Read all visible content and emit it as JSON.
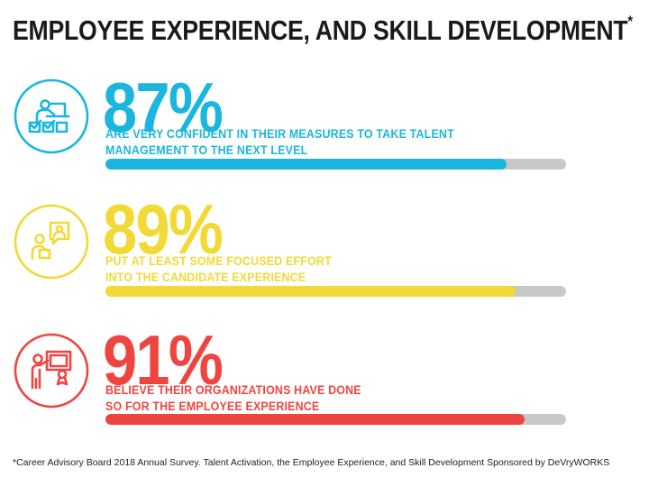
{
  "header": {
    "title": "EMPLOYEE EXPERIENCE, AND SKILL DEVELOPMENT",
    "title_mark": "*"
  },
  "stats": [
    {
      "value": "87%",
      "fraction": 0.87,
      "text": "ARE VERY CONFIDENT IN THEIR MEASURES TO TAKE TALENT MANAGEMENT TO THE NEXT LEVEL",
      "color": "#1bb6de",
      "icon": "talent-management-icon"
    },
    {
      "value": "89%",
      "fraction": 0.89,
      "text": "PUT AT LEAST SOME FOCUSED EFFORT INTO THE CANDIDATE EXPERIENCE",
      "color": "#f2d935",
      "icon": "candidate-experience-icon"
    },
    {
      "value": "91%",
      "fraction": 0.91,
      "text": "BELIEVE THEIR ORGANIZATIONS HAVE DONE SO FOR THE EMPLOYEE EXPERIENCE",
      "color": "#ee4540",
      "icon": "employee-experience-icon"
    }
  ],
  "footnote": "*Career Advisory Board 2018 Annual Survey. Talent Activation, the Employee Experience, and Skill Development Sponsored by DeVryWORKS",
  "colors": {
    "track": "#c8c8c8",
    "text": "#1a1a1a"
  }
}
